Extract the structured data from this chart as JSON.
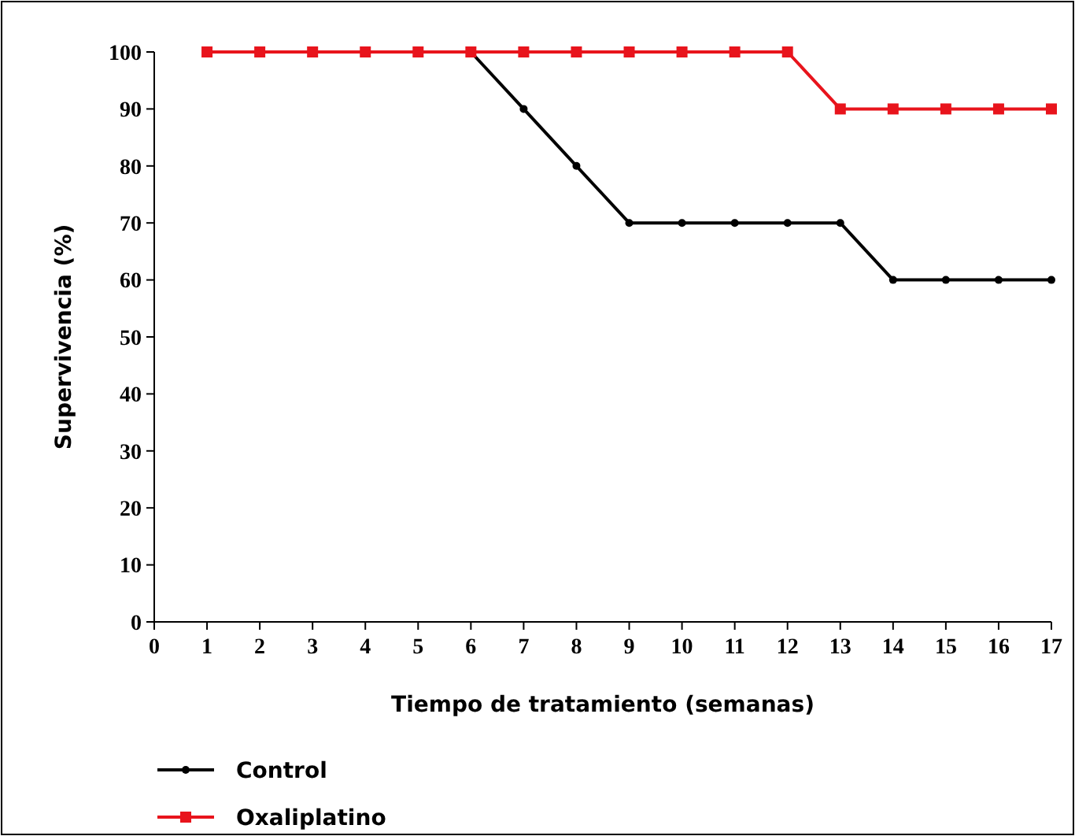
{
  "chart_data": {
    "type": "line",
    "xlabel": "Tiempo de tratamiento (semanas)",
    "ylabel": "Supervivencia (%)",
    "x": [
      1,
      2,
      3,
      4,
      5,
      6,
      7,
      8,
      9,
      10,
      11,
      12,
      13,
      14,
      15,
      16,
      17
    ],
    "xlim": [
      0,
      17
    ],
    "xticks": [
      0,
      1,
      2,
      3,
      4,
      5,
      6,
      7,
      8,
      9,
      10,
      11,
      12,
      13,
      14,
      15,
      16,
      17
    ],
    "ylim": [
      0,
      100
    ],
    "yticks": [
      0,
      10,
      20,
      30,
      40,
      50,
      60,
      70,
      80,
      90,
      100
    ],
    "grid": false,
    "legend": "bottom left",
    "line_style": "solid",
    "series": [
      {
        "name": "Control",
        "color": "#000000",
        "marker": "circle",
        "values": [
          null,
          null,
          null,
          null,
          null,
          100,
          90,
          80,
          70,
          70,
          70,
          70,
          70,
          60,
          60,
          60,
          60
        ]
      },
      {
        "name": "Oxaliplatino",
        "color": "#e8141c",
        "marker": "square",
        "values": [
          100,
          100,
          100,
          100,
          100,
          100,
          100,
          100,
          100,
          100,
          100,
          100,
          90,
          90,
          90,
          90,
          90
        ]
      }
    ]
  }
}
